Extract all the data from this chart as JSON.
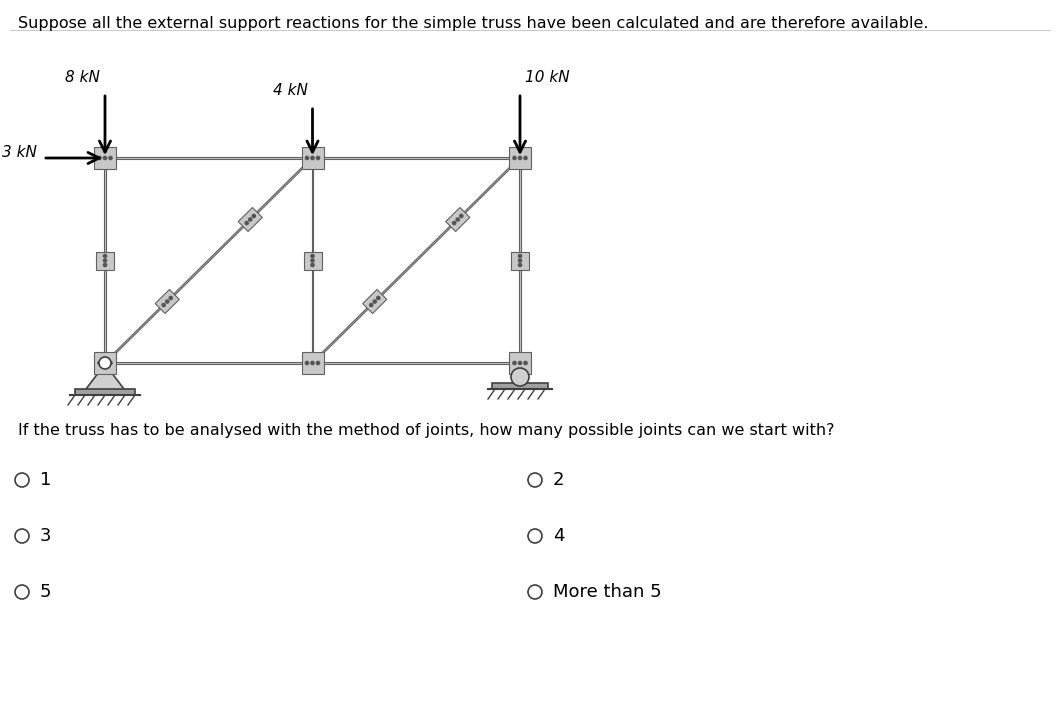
{
  "title_text": "Suppose all the external support reactions for the simple truss have been calculated and are therefore available.",
  "question_text": "If the truss has to be analysed with the method of joints, how many possible joints can we start with?",
  "load_8kN_label": "8 kN",
  "load_4kN_label": "4 kN",
  "load_10kN_label": "10 kN",
  "load_3kN_label": "3 kN",
  "options_left": [
    "1",
    "3",
    "5"
  ],
  "options_right": [
    "2",
    "4",
    "More than 5"
  ],
  "bg_color": "#ffffff",
  "text_color": "#000000",
  "truss_face_color": "#c8c8c8",
  "truss_edge_color": "#606060",
  "bolt_color": "#555555",
  "title_fontsize": 11.5,
  "question_fontsize": 11.5,
  "option_fontsize": 13,
  "arrow_lw": 2.0,
  "member_thickness": 0.014,
  "diagonal_thickness": 0.016
}
